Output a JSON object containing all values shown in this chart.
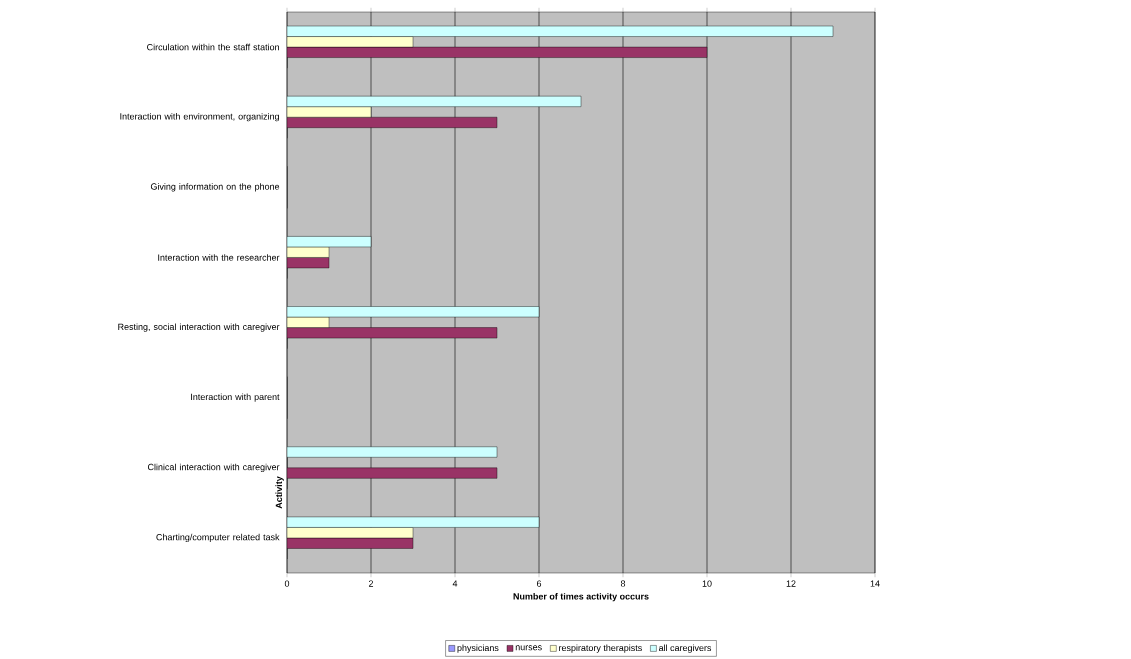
{
  "chart_data": {
    "type": "bar",
    "orientation": "horizontal",
    "xlabel": "Number of times activity occurs",
    "ylabel": "Activity",
    "categories": [
      "Circulation within the staff station",
      "Interaction with environment, organizing",
      "Giving information on the phone",
      "Interaction with the researcher",
      "Resting, social interaction with caregiver",
      "Interaction with parent",
      "Clinical interaction with caregiver",
      "Charting/computer related task"
    ],
    "series": [
      {
        "name": "physicians",
        "color": "#9999ff",
        "values": [
          0,
          0,
          0,
          0,
          0,
          0,
          0,
          0
        ]
      },
      {
        "name": "nurses",
        "color": "#993366",
        "values": [
          10,
          5,
          0,
          1,
          5,
          0,
          5,
          3
        ]
      },
      {
        "name": "respiratory therapists",
        "color": "#ffffcc",
        "values": [
          3,
          2,
          0,
          1,
          1,
          0,
          0,
          3
        ]
      },
      {
        "name": "all caregivers",
        "color": "#ccffff",
        "values": [
          13,
          7,
          0,
          2,
          6,
          0,
          5,
          6
        ]
      }
    ],
    "xlim": [
      0,
      14
    ],
    "xticks": [
      0,
      2,
      4,
      6,
      8,
      10,
      12,
      14
    ],
    "grid": "x",
    "legend": "bottom"
  }
}
